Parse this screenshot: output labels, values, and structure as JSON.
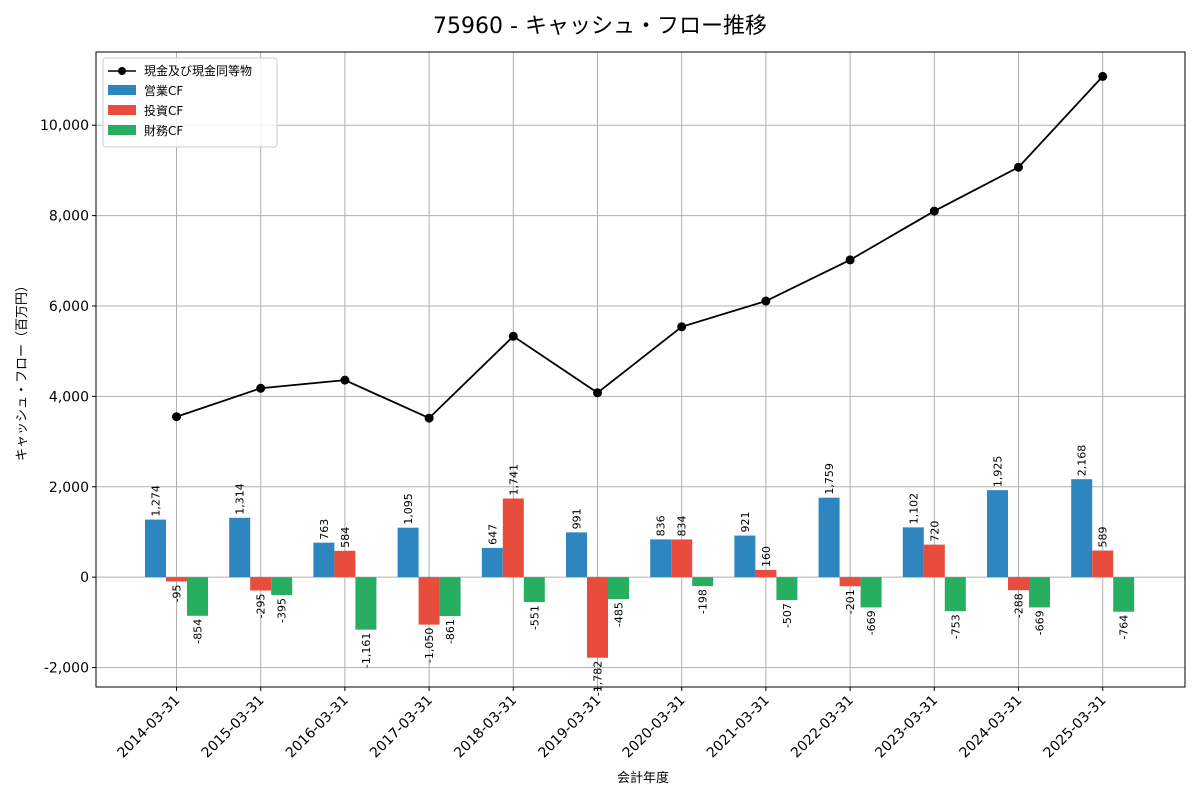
{
  "chart_data": {
    "type": "bar",
    "title": "75960 - キャッシュ・フロー推移",
    "xlabel": "会計年度",
    "ylabel": "キャッシュ・フロー（百万円）",
    "categories": [
      "2014-03-31",
      "2015-03-31",
      "2016-03-31",
      "2017-03-31",
      "2018-03-31",
      "2019-03-31",
      "2020-03-31",
      "2021-03-31",
      "2022-03-31",
      "2023-03-31",
      "2024-03-31",
      "2025-03-31"
    ],
    "ylim": [
      -2430,
      11620
    ],
    "yticks": [
      -2000,
      0,
      2000,
      4000,
      6000,
      8000,
      10000
    ],
    "ytick_labels": [
      "-2,000",
      "0",
      "2,000",
      "4,000",
      "6,000",
      "8,000",
      "10,000"
    ],
    "grid": true,
    "legend_position": "top-left",
    "series": [
      {
        "name": "営業CF",
        "kind": "bar",
        "color": "#2e86c1",
        "values": [
          1274,
          1314,
          763,
          1095,
          647,
          991,
          836,
          921,
          1759,
          1102,
          1925,
          2168
        ],
        "labels": [
          "1,274",
          "1,314",
          "763",
          "1,095",
          "647",
          "991",
          "836",
          "921",
          "1,759",
          "1,102",
          "1,925",
          "2,168"
        ]
      },
      {
        "name": "投資CF",
        "kind": "bar",
        "color": "#e74c3c",
        "values": [
          -95,
          -295,
          584,
          -1050,
          1741,
          -1782,
          834,
          160,
          -201,
          720,
          -288,
          589
        ],
        "labels": [
          "-95",
          "-295",
          "584",
          "-1,050",
          "1,741",
          "-1,782",
          "834",
          "160",
          "-201",
          "720",
          "-288",
          "589"
        ]
      },
      {
        "name": "財務CF",
        "kind": "bar",
        "color": "#27ae60",
        "values": [
          -854,
          -395,
          -1161,
          -861,
          -551,
          -485,
          -198,
          -507,
          -669,
          -753,
          -669,
          -764
        ],
        "labels": [
          "-854",
          "-395",
          "-1,161",
          "-861",
          "-551",
          "-485",
          "-198",
          "-507",
          "-669",
          "-753",
          "-669",
          "-764"
        ]
      },
      {
        "name": "現金及び現金同等物",
        "kind": "line",
        "color": "#000000",
        "values": [
          3550,
          4180,
          4360,
          3520,
          5330,
          4080,
          5540,
          6110,
          7020,
          8100,
          9070,
          11080
        ]
      }
    ]
  }
}
